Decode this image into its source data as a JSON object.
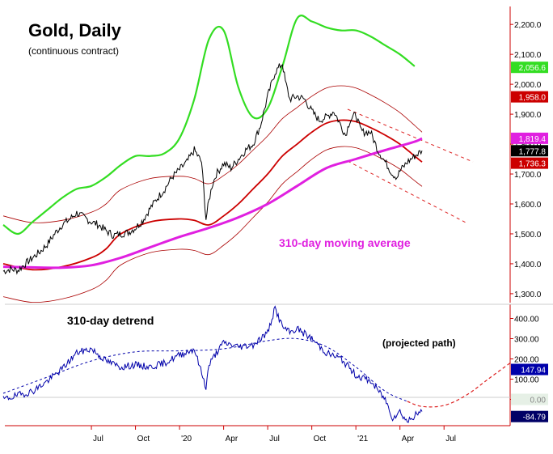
{
  "colors": {
    "price": "#000000",
    "ma310": "#e020e0",
    "cycle_green": "#33dd22",
    "cycle_red": "#cc0000",
    "band": "#aa0000",
    "channel": "#dd2222",
    "detrend": "#0000aa",
    "axis_red": "#cc0000",
    "zero_line": "#cccccc"
  },
  "chart_data": [
    {
      "type": "line",
      "title": "Gold, Daily",
      "subtitle": "(continuous contract)",
      "annotation": "310-day moving average",
      "x": {
        "tick_labels": [
          "Jul",
          "Oct",
          "'20",
          "Apr",
          "Jul",
          "Oct",
          "'21",
          "Apr",
          "Jul"
        ],
        "tick_months": [
          6,
          9,
          12,
          15,
          18,
          21,
          24,
          27,
          30
        ],
        "range_months": [
          0,
          34.5
        ]
      },
      "ylim": [
        1270,
        2260
      ],
      "y_ticks": [
        1300,
        1400,
        1500,
        1600,
        1700,
        1800,
        1900,
        2000,
        2100,
        2200
      ],
      "y_tick_labels": [
        "1,300.0",
        "1,400.0",
        "1,500.0",
        "1,600.0",
        "1,700.0",
        "1,800.0",
        "1,900.0",
        "2,000.0",
        "2,100.0",
        "2,200.0"
      ],
      "value_tags": [
        {
          "label": "2,056.6",
          "value": 2056.6,
          "bg": "#33dd22",
          "fg": "#ffffff"
        },
        {
          "label": "1,958.0",
          "value": 1958.0,
          "bg": "#cc0000",
          "fg": "#ffffff"
        },
        {
          "label": "1,819.4",
          "value": 1819.4,
          "bg": "#e020e0",
          "fg": "#ffffff"
        },
        {
          "label": "1,777.8",
          "value": 1777.8,
          "bg": "#000000",
          "fg": "#ffffff"
        },
        {
          "label": "1,736.3",
          "value": 1736.3,
          "bg": "#cc0000",
          "fg": "#ffffff"
        }
      ],
      "series": [
        {
          "name": "Gold price",
          "month": [
            0,
            0.5,
            1,
            1.5,
            2,
            2.5,
            3,
            3.5,
            4,
            4.5,
            5,
            5.5,
            6,
            6.5,
            7,
            7.5,
            8,
            8.5,
            9,
            9.5,
            10,
            10.5,
            11,
            11.5,
            12,
            12.5,
            13,
            13.5,
            13.8,
            14,
            14.2,
            14.5,
            15,
            15.5,
            16,
            16.5,
            17,
            17.5,
            18,
            18.5,
            19,
            19.2,
            19.5,
            20,
            20.5,
            21,
            21.5,
            22,
            22.5,
            23,
            23.3,
            23.6,
            24,
            24.3,
            24.5,
            25,
            25.5,
            26,
            26.5,
            26.8,
            27,
            27.5,
            28,
            28.5
          ],
          "values": [
            1375,
            1382,
            1378,
            1400,
            1420,
            1440,
            1465,
            1500,
            1530,
            1548,
            1570,
            1555,
            1540,
            1530,
            1510,
            1495,
            1500,
            1505,
            1520,
            1545,
            1585,
            1620,
            1650,
            1690,
            1715,
            1740,
            1780,
            1740,
            1550,
            1610,
            1660,
            1700,
            1735,
            1720,
            1750,
            1780,
            1800,
            1860,
            1960,
            2040,
            2070,
            2010,
            1950,
            1960,
            1950,
            1910,
            1880,
            1890,
            1910,
            1860,
            1830,
            1880,
            1900,
            1850,
            1840,
            1840,
            1780,
            1740,
            1700,
            1690,
            1710,
            1740,
            1760,
            1778
          ]
        },
        {
          "name": "310-day moving average",
          "month": [
            0,
            2,
            4,
            6,
            8,
            10,
            12,
            14,
            16,
            18,
            20,
            22,
            24,
            26,
            28,
            28.5
          ],
          "values": [
            1390,
            1388,
            1387,
            1395,
            1420,
            1455,
            1490,
            1520,
            1555,
            1600,
            1660,
            1720,
            1750,
            1780,
            1808,
            1819
          ]
        },
        {
          "name": "Cycle projection (green)",
          "month": [
            0,
            1,
            2,
            3,
            4,
            5,
            6,
            7,
            8,
            9,
            10,
            11,
            12,
            13,
            14,
            15,
            16,
            17,
            18,
            19,
            20,
            21,
            22,
            23,
            24,
            25,
            26,
            27,
            28
          ],
          "values": [
            1530,
            1500,
            1540,
            1580,
            1620,
            1650,
            1660,
            1690,
            1730,
            1760,
            1760,
            1770,
            1820,
            1950,
            2150,
            2180,
            1990,
            1890,
            1920,
            2060,
            2220,
            2210,
            2190,
            2180,
            2180,
            2160,
            2130,
            2100,
            2060
          ]
        },
        {
          "name": "Cycle projection (red)",
          "month": [
            0,
            2,
            4,
            6,
            7,
            8,
            10,
            12,
            13,
            14,
            15,
            16,
            17,
            18,
            19,
            20,
            21,
            22,
            23,
            24,
            25,
            26,
            27,
            28,
            28.5
          ],
          "values": [
            1400,
            1380,
            1390,
            1420,
            1450,
            1500,
            1540,
            1550,
            1545,
            1530,
            1560,
            1600,
            1650,
            1700,
            1760,
            1800,
            1840,
            1870,
            1880,
            1875,
            1855,
            1830,
            1800,
            1760,
            1740
          ]
        }
      ]
    },
    {
      "type": "line",
      "title": "310-day detrend",
      "annotation": "(projected path)",
      "ylim": [
        -130,
        470
      ],
      "y_ticks": [
        0,
        100,
        200,
        300,
        400
      ],
      "y_tick_labels": [
        "0.00",
        "100.00",
        "200.00",
        "300.00",
        "400.00"
      ],
      "value_tags": [
        {
          "label": "147.94",
          "value": 147.94,
          "bg": "#0000aa",
          "fg": "#ffffff"
        },
        {
          "label": "0.00",
          "value": 0,
          "bg": "#e6f0e6",
          "fg": "#888888"
        },
        {
          "label": "-84.79",
          "value": -84.79,
          "bg": "#000066",
          "fg": "#ffffff"
        }
      ],
      "series": [
        {
          "name": "Detrended price",
          "month": [
            0,
            1,
            2,
            3,
            4,
            5,
            6,
            7,
            8,
            9,
            10,
            11,
            12,
            13,
            13.8,
            14,
            14.5,
            15,
            16,
            17,
            18,
            18.5,
            19,
            19.5,
            20,
            21,
            22,
            23,
            24,
            25,
            26,
            26.5,
            27,
            27.5,
            28,
            28.5
          ],
          "values": [
            0,
            20,
            40,
            90,
            150,
            230,
            250,
            190,
            160,
            170,
            160,
            180,
            220,
            250,
            60,
            170,
            230,
            280,
            260,
            270,
            330,
            450,
            360,
            330,
            350,
            300,
            230,
            200,
            120,
            90,
            0,
            -90,
            -60,
            -110,
            -80,
            -60
          ]
        },
        {
          "name": "Smoothed cycle",
          "month": [
            0,
            3,
            6,
            9,
            12,
            15,
            18,
            20,
            22,
            24,
            26,
            27.5
          ],
          "values": [
            30,
            110,
            190,
            235,
            240,
            250,
            290,
            300,
            260,
            160,
            40,
            -10
          ]
        },
        {
          "name": "Projected path",
          "month": [
            27.5,
            28.5,
            30,
            31.5,
            33,
            34.5
          ],
          "values": [
            -10,
            -35,
            -30,
            20,
            100,
            180
          ]
        }
      ]
    }
  ]
}
